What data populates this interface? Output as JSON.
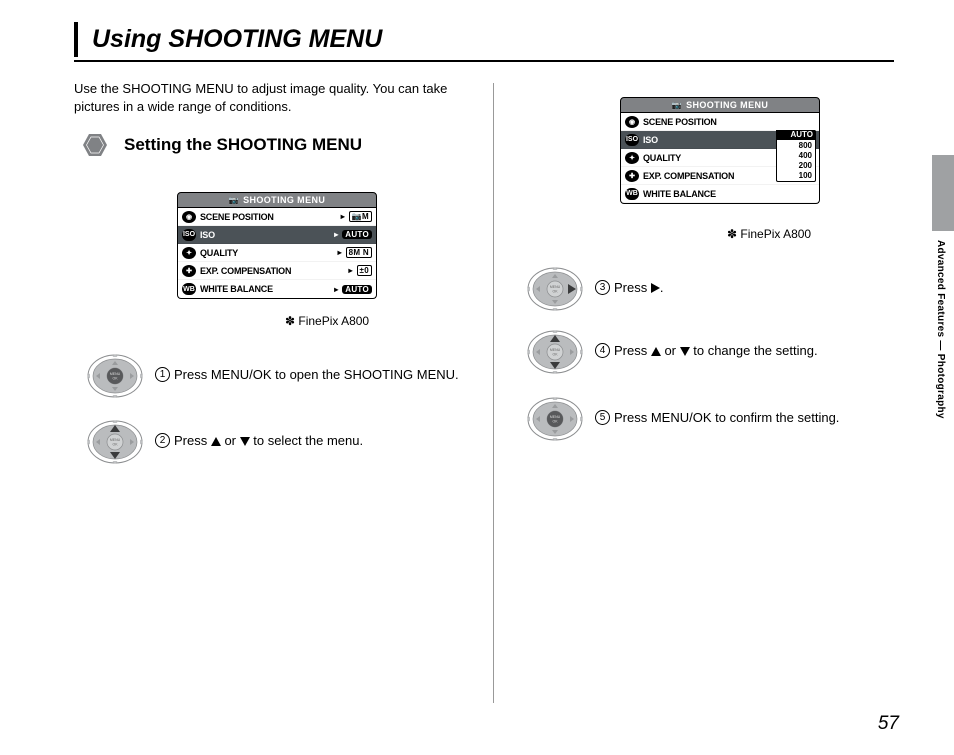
{
  "title": "Using SHOOTING MENU",
  "intro": "Use the SHOOTING MENU to adjust image quality. You can take pictures in a wide range of conditions.",
  "subheading": "Setting the SHOOTING MENU",
  "caption": "✽ FinePix A800",
  "side_label": "Advanced Features — Photography",
  "page_number": "57",
  "menu1": {
    "header": "SHOOTING MENU",
    "rows": [
      {
        "icon": "◉",
        "label": "SCENE POSITION",
        "value": "📷M"
      },
      {
        "icon": "ISO",
        "label": "ISO",
        "value": "AUTO",
        "selected": true
      },
      {
        "icon": "✦",
        "label": "QUALITY",
        "value": "8M N"
      },
      {
        "icon": "✚",
        "label": "EXP. COMPENSATION",
        "value": "±0"
      },
      {
        "icon": "WB",
        "label": "WHITE BALANCE",
        "value": "AUTO"
      }
    ]
  },
  "menu2": {
    "header": "SHOOTING MENU",
    "rows": [
      {
        "icon": "◉",
        "label": "SCENE POSITION"
      },
      {
        "icon": "ISO",
        "label": "ISO",
        "selected": true
      },
      {
        "icon": "✦",
        "label": "QUALITY"
      },
      {
        "icon": "✚",
        "label": "EXP. COMPENSATION"
      },
      {
        "icon": "WB",
        "label": "WHITE BALANCE"
      }
    ],
    "popup": [
      "AUTO",
      "800",
      "400",
      "200",
      "100"
    ]
  },
  "steps": {
    "s1": {
      "num": "1",
      "text": "Press MENU/OK to open the SHOOTING MENU."
    },
    "s2": {
      "num": "2",
      "pre": "Press ",
      "mid": " or ",
      "post": " to select the menu."
    },
    "s3": {
      "num": "3",
      "pre": "Press ",
      "post": "."
    },
    "s4": {
      "num": "4",
      "pre": "Press ",
      "mid": " or ",
      "post": " to change the setting."
    },
    "s5": {
      "num": "5",
      "text": "Press MENU/OK to confirm the setting."
    }
  },
  "colors": {
    "dpad_body": "#babcbe",
    "dpad_ring": "#8a8c8e",
    "dpad_hl": "#58595b",
    "hex_fill": "#808285"
  }
}
